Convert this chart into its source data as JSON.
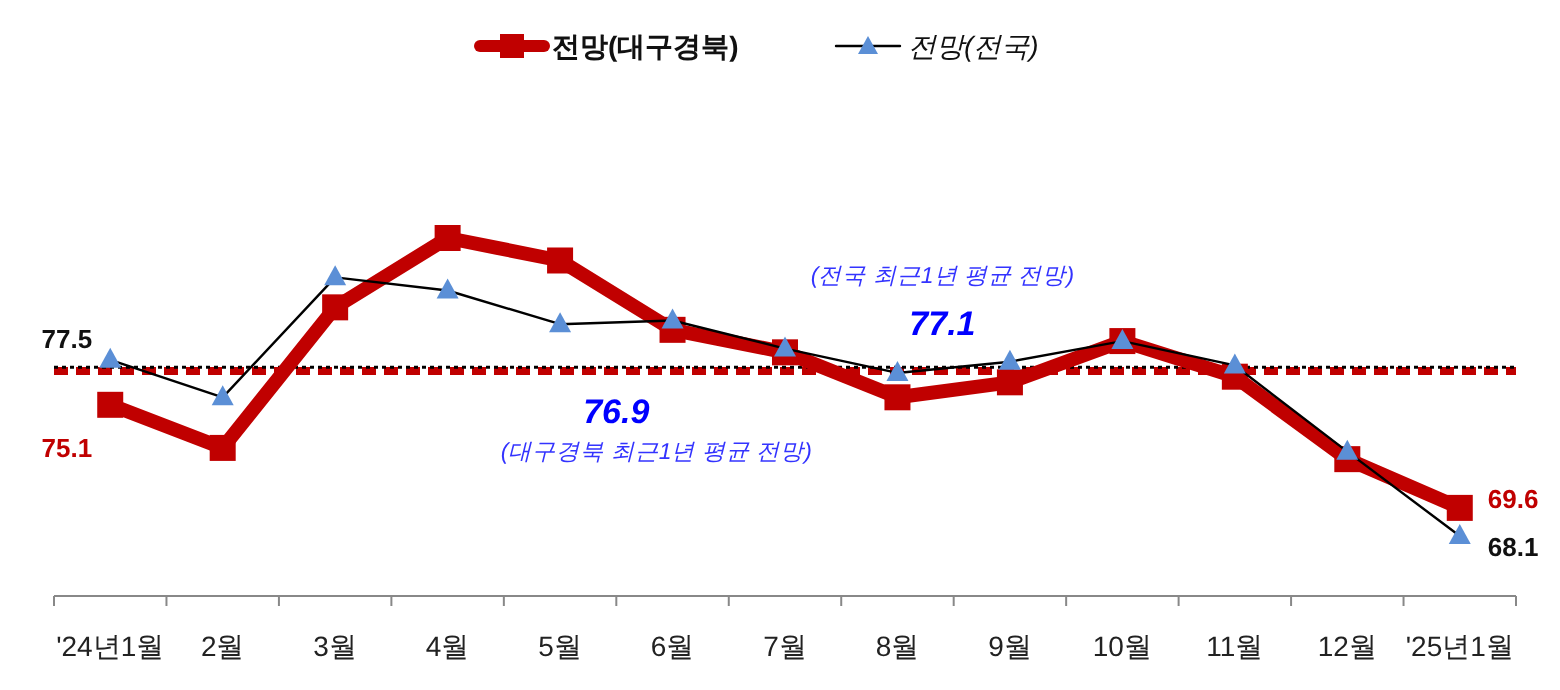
{
  "chart_data": {
    "type": "line",
    "categories": [
      "'24년1월",
      "2월",
      "3월",
      "4월",
      "5월",
      "6월",
      "7월",
      "8월",
      "9월",
      "10월",
      "11월",
      "12월",
      "'25년1월"
    ],
    "series": [
      {
        "name": "전망(대구경북)",
        "color": "#c00000",
        "marker": "square",
        "line_style": "solid",
        "values": [
          75.1,
          72.8,
          80.3,
          84.0,
          82.8,
          79.1,
          77.9,
          75.5,
          76.3,
          78.5,
          76.6,
          72.2,
          69.6
        ],
        "value_labels": [
          "75.1",
          null,
          null,
          null,
          null,
          null,
          null,
          null,
          null,
          null,
          null,
          null,
          "69.6"
        ]
      },
      {
        "name": "전망(전국)",
        "color": "#000000",
        "marker": "triangle",
        "line_style": "solid",
        "values": [
          77.5,
          75.5,
          81.9,
          81.2,
          79.4,
          79.6,
          78.1,
          76.8,
          77.4,
          78.5,
          77.2,
          72.6,
          68.1
        ],
        "value_labels": [
          "77.5",
          null,
          null,
          null,
          null,
          null,
          null,
          null,
          null,
          null,
          null,
          null,
          "68.1"
        ]
      }
    ],
    "ref_lines": [
      {
        "axis": "y",
        "value": 76.9,
        "label": "76.9",
        "color": "#c00000",
        "line_style": "dashed"
      },
      {
        "axis": "y",
        "value": 77.1,
        "label": "77.1",
        "color": "#000000",
        "line_style": "dotted"
      }
    ],
    "annotations": [
      "(대구경북 최근1년 평균 전망)",
      "(전국 최근1년 평균 전망)"
    ],
    "legend": "top"
  }
}
